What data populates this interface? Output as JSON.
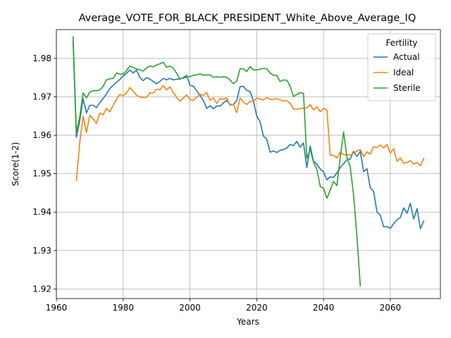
{
  "chart_data": {
    "type": "line",
    "title": "Average_VOTE_FOR_BLACK_PRESIDENT_White_Above_Average_IQ",
    "xlabel": "Years",
    "ylabel": "Score(1-2)",
    "xlim": [
      1960,
      2075
    ],
    "ylim": [
      1.9175,
      1.9875
    ],
    "xticks": [
      1960,
      1980,
      2000,
      2020,
      2040,
      2060
    ],
    "yticks": [
      1.92,
      1.93,
      1.94,
      1.95,
      1.96,
      1.97,
      1.98
    ],
    "grid": true,
    "legend": {
      "title": "Fertility",
      "position": "top-right"
    },
    "series": [
      {
        "name": "Actual",
        "color": "#1f77b4",
        "x": [
          1965,
          1966,
          1967,
          1968,
          1969,
          1970,
          1971,
          1972,
          1973,
          1974,
          1975,
          1976,
          1977,
          1978,
          1979,
          1980,
          1981,
          1982,
          1983,
          1984,
          1985,
          1986,
          1987,
          1988,
          1989,
          1990,
          1991,
          1992,
          1993,
          1994,
          1995,
          1996,
          1997,
          1998,
          1999,
          2000,
          2001,
          2002,
          2003,
          2004,
          2005,
          2006,
          2007,
          2008,
          2009,
          2010,
          2011,
          2012,
          2013,
          2014,
          2015,
          2016,
          2017,
          2018,
          2019,
          2020,
          2021,
          2022,
          2023,
          2024,
          2025,
          2026,
          2027,
          2028,
          2029,
          2030,
          2031,
          2032,
          2033,
          2034,
          2035,
          2036,
          2037,
          2038,
          2039,
          2040,
          2041,
          2042,
          2043,
          2044,
          2045,
          2046,
          2047,
          2048,
          2049,
          2050,
          2051,
          2052,
          2053,
          2054,
          2055,
          2056,
          2057,
          2058,
          2059,
          2060,
          2061,
          2062,
          2063,
          2064,
          2065,
          2066,
          2067,
          2068,
          2069,
          2070
        ],
        "values": [
          1.9845,
          1.9595,
          1.9638,
          1.9695,
          1.9658,
          1.9678,
          1.9678,
          1.9672,
          1.9685,
          1.9695,
          1.9708,
          1.9721,
          1.973,
          1.9738,
          1.9745,
          1.9754,
          1.9761,
          1.977,
          1.9762,
          1.977,
          1.975,
          1.9742,
          1.975,
          1.9746,
          1.974,
          1.9734,
          1.974,
          1.9748,
          1.9744,
          1.9748,
          1.9744,
          1.9746,
          1.9746,
          1.975,
          1.9756,
          1.973,
          1.9728,
          1.9716,
          1.9704,
          1.9691,
          1.967,
          1.9677,
          1.9669,
          1.9676,
          1.9676,
          1.9684,
          1.9691,
          1.968,
          1.968,
          1.969,
          1.9727,
          1.9727,
          1.9717,
          1.9714,
          1.969,
          1.965,
          1.9635,
          1.9598,
          1.959,
          1.9556,
          1.9559,
          1.9555,
          1.9561,
          1.9563,
          1.9567,
          1.9576,
          1.9573,
          1.9584,
          1.9569,
          1.958,
          1.9516,
          1.9572,
          1.9532,
          1.9525,
          1.9512,
          1.9505,
          1.9484,
          1.9492,
          1.949,
          1.9502,
          1.9516,
          1.9526,
          1.9536,
          1.9538,
          1.9558,
          1.9545,
          1.9558,
          1.9505,
          1.9513,
          1.9463,
          1.9454,
          1.94,
          1.9392,
          1.9362,
          1.9362,
          1.9358,
          1.937,
          1.938,
          1.9386,
          1.9411,
          1.9397,
          1.9423,
          1.9382,
          1.9409,
          1.9357,
          1.9377
        ]
      },
      {
        "name": "Ideal",
        "color": "#ff7f0e",
        "x": [
          1966,
          1967,
          1968,
          1969,
          1970,
          1971,
          1972,
          1973,
          1974,
          1975,
          1976,
          1977,
          1978,
          1979,
          1980,
          1981,
          1982,
          1983,
          1984,
          1985,
          1986,
          1987,
          1988,
          1989,
          1990,
          1991,
          1992,
          1993,
          1994,
          1995,
          1996,
          1997,
          1998,
          1999,
          2000,
          2001,
          2002,
          2003,
          2004,
          2005,
          2006,
          2007,
          2008,
          2009,
          2010,
          2011,
          2012,
          2013,
          2014,
          2015,
          2016,
          2017,
          2018,
          2019,
          2020,
          2021,
          2022,
          2023,
          2024,
          2025,
          2026,
          2027,
          2028,
          2029,
          2030,
          2031,
          2032,
          2033,
          2034,
          2035,
          2036,
          2037,
          2038,
          2039,
          2040,
          2041,
          2042,
          2043,
          2044,
          2045,
          2046,
          2047,
          2048,
          2049,
          2050,
          2051,
          2052,
          2053,
          2054,
          2055,
          2056,
          2057,
          2058,
          2059,
          2060,
          2061,
          2062,
          2063,
          2064,
          2065,
          2066,
          2067,
          2068,
          2069,
          2070
        ],
        "values": [
          1.9483,
          1.9582,
          1.965,
          1.9607,
          1.9652,
          1.9643,
          1.9631,
          1.9658,
          1.9653,
          1.967,
          1.9661,
          1.9678,
          1.9693,
          1.9706,
          1.9703,
          1.971,
          1.9724,
          1.9715,
          1.9704,
          1.97,
          1.9698,
          1.9699,
          1.971,
          1.971,
          1.972,
          1.9718,
          1.973,
          1.9718,
          1.9726,
          1.9711,
          1.9699,
          1.9688,
          1.9697,
          1.9705,
          1.9693,
          1.9691,
          1.9699,
          1.9706,
          1.9704,
          1.9711,
          1.9691,
          1.9697,
          1.9683,
          1.9695,
          1.9694,
          1.9697,
          1.9678,
          1.9681,
          1.9659,
          1.9697,
          1.9686,
          1.968,
          1.9688,
          1.9688,
          1.9697,
          1.9694,
          1.9692,
          1.9698,
          1.9694,
          1.9693,
          1.9696,
          1.9692,
          1.9689,
          1.969,
          1.9683,
          1.9668,
          1.9668,
          1.9669,
          1.9671,
          1.9671,
          1.968,
          1.9666,
          1.9674,
          1.9661,
          1.967,
          1.9667,
          1.9548,
          1.9548,
          1.9541,
          1.9556,
          1.9549,
          1.955,
          1.9548,
          1.9553,
          1.9559,
          1.9563,
          1.9544,
          1.9557,
          1.9551,
          1.957,
          1.9568,
          1.9575,
          1.9567,
          1.9576,
          1.9553,
          1.9565,
          1.9532,
          1.9541,
          1.9527,
          1.9529,
          1.9534,
          1.9525,
          1.9529,
          1.9521,
          1.954
        ]
      },
      {
        "name": "Sterile",
        "color": "#2ca02c",
        "x": [
          1965,
          1966,
          1967,
          1968,
          1969,
          1970,
          1971,
          1972,
          1973,
          1974,
          1975,
          1976,
          1977,
          1978,
          1979,
          1980,
          1981,
          1982,
          1983,
          1984,
          1985,
          1986,
          1987,
          1988,
          1989,
          1990,
          1991,
          1992,
          1993,
          1994,
          1995,
          1996,
          1997,
          1998,
          1999,
          2000,
          2001,
          2002,
          2003,
          2004,
          2005,
          2006,
          2007,
          2008,
          2009,
          2010,
          2011,
          2012,
          2013,
          2014,
          2015,
          2016,
          2017,
          2018,
          2019,
          2020,
          2021,
          2022,
          2023,
          2024,
          2025,
          2026,
          2027,
          2028,
          2029,
          2030,
          2031,
          2032,
          2033,
          2034,
          2035,
          2036,
          2037,
          2038,
          2039,
          2040,
          2041,
          2042,
          2043,
          2044,
          2045,
          2046,
          2047,
          2048,
          2049,
          2050,
          2051
        ],
        "values": [
          1.9856,
          1.9607,
          1.9648,
          1.971,
          1.9697,
          1.9712,
          1.9716,
          1.9716,
          1.9718,
          1.9727,
          1.9744,
          1.9747,
          1.9748,
          1.9762,
          1.9759,
          1.9759,
          1.9768,
          1.978,
          1.9776,
          1.9773,
          1.977,
          1.9767,
          1.9775,
          1.978,
          1.9778,
          1.9783,
          1.9786,
          1.979,
          1.9777,
          1.978,
          1.9775,
          1.9761,
          1.9747,
          1.9749,
          1.9751,
          1.9753,
          1.9756,
          1.9757,
          1.976,
          1.9756,
          1.9757,
          1.9757,
          1.9751,
          1.9752,
          1.9751,
          1.9752,
          1.9751,
          1.9744,
          1.9734,
          1.9741,
          1.9773,
          1.9773,
          1.9766,
          1.9779,
          1.977,
          1.977,
          1.9772,
          1.9774,
          1.9773,
          1.9762,
          1.9756,
          1.9756,
          1.974,
          1.9744,
          1.9743,
          1.9728,
          1.9701,
          1.9706,
          1.9711,
          1.9709,
          1.954,
          1.9563,
          1.953,
          1.9511,
          1.9467,
          1.9462,
          1.9436,
          1.9457,
          1.948,
          1.9469,
          1.9542,
          1.9609,
          1.9542,
          1.9518,
          1.9443,
          1.9338,
          1.9208
        ]
      }
    ]
  }
}
